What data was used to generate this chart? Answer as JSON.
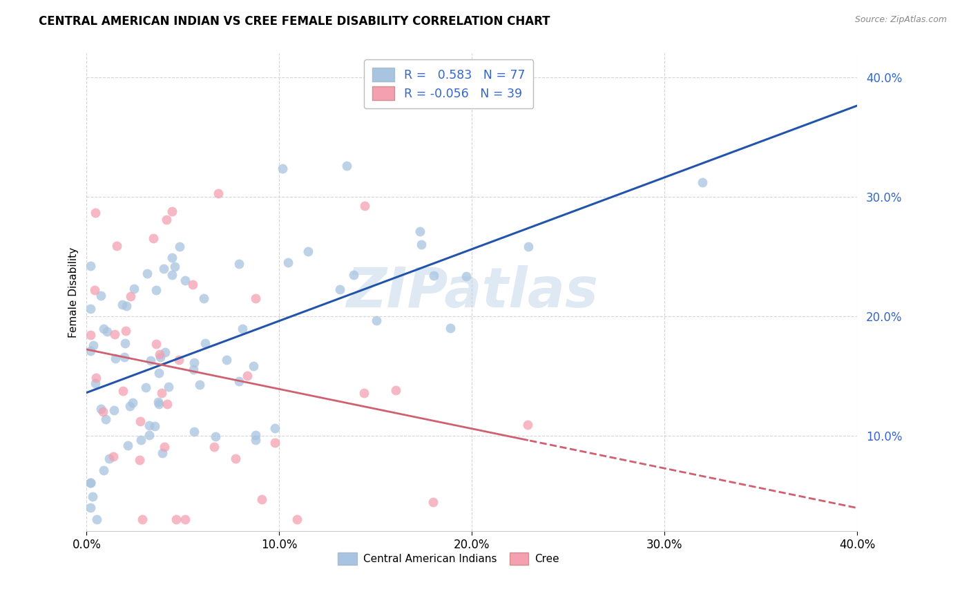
{
  "title": "CENTRAL AMERICAN INDIAN VS CREE FEMALE DISABILITY CORRELATION CHART",
  "source": "Source: ZipAtlas.com",
  "ylabel": "Female Disability",
  "xlim": [
    0.0,
    0.4
  ],
  "ylim": [
    0.02,
    0.42
  ],
  "yticks": [
    0.1,
    0.2,
    0.3,
    0.4
  ],
  "xticks": [
    0.0,
    0.1,
    0.2,
    0.3,
    0.4
  ],
  "blue_R": 0.583,
  "blue_N": 77,
  "pink_R": -0.056,
  "pink_N": 39,
  "blue_color": "#a8c4e0",
  "pink_color": "#f4a0b0",
  "blue_line_color": "#2255aa",
  "pink_line_color": "#d06070",
  "watermark": "ZIPatlas",
  "background_color": "#ffffff",
  "grid_color": "#d0d0d0",
  "legend_text_color": "#3366cc",
  "ytick_color": "#3366cc"
}
